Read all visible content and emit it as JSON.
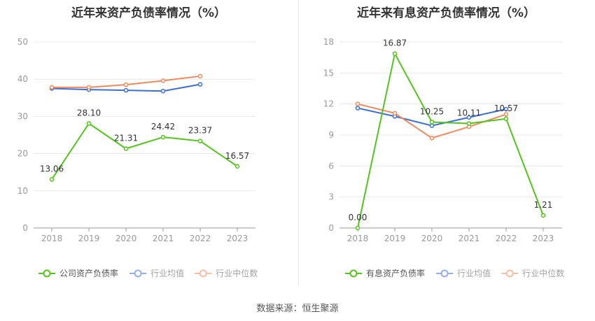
{
  "source_text": "数据来源：恒生聚源",
  "chart_data": [
    {
      "type": "line",
      "title": "近年来资产负债率情况（%）",
      "categories": [
        "2018",
        "2019",
        "2020",
        "2021",
        "2022",
        "2023"
      ],
      "ylim": [
        0,
        50
      ],
      "yticks": [
        0,
        10,
        20,
        30,
        40,
        50
      ],
      "grid": true,
      "legend_position": "bottom",
      "series": [
        {
          "name": "公司资产负债率",
          "color": "#52c41a",
          "values": [
            13.06,
            28.1,
            21.31,
            24.42,
            23.37,
            16.57
          ],
          "labels": [
            "13.06",
            "28.10",
            "21.31",
            "24.42",
            "23.37",
            "16.57"
          ]
        },
        {
          "name": "行业均值",
          "color": "#3b6fd6",
          "values": [
            37.5,
            37.2,
            37.0,
            36.8,
            38.6,
            null
          ]
        },
        {
          "name": "行业中位数",
          "color": "#f08a5d",
          "values": [
            37.8,
            37.8,
            38.5,
            39.6,
            40.8,
            null
          ]
        }
      ]
    },
    {
      "type": "line",
      "title": "近年来有息资产负债率情况（%）",
      "categories": [
        "2018",
        "2019",
        "2020",
        "2021",
        "2022",
        "2023"
      ],
      "ylim": [
        0,
        18
      ],
      "yticks": [
        0,
        3,
        6,
        9,
        12,
        15,
        18
      ],
      "grid": true,
      "legend_position": "bottom",
      "series": [
        {
          "name": "有息资产负债率",
          "color": "#52c41a",
          "values": [
            0.0,
            16.87,
            10.25,
            10.11,
            10.57,
            1.21
          ],
          "labels": [
            "0.00",
            "16.87",
            "10.25",
            "10.11",
            "10.57",
            "1.21"
          ]
        },
        {
          "name": "行业均值",
          "color": "#3b6fd6",
          "values": [
            11.6,
            10.8,
            9.9,
            10.7,
            11.5,
            null
          ]
        },
        {
          "name": "行业中位数",
          "color": "#f08a5d",
          "values": [
            12.0,
            11.1,
            8.7,
            9.8,
            11.0,
            null
          ]
        }
      ]
    }
  ]
}
